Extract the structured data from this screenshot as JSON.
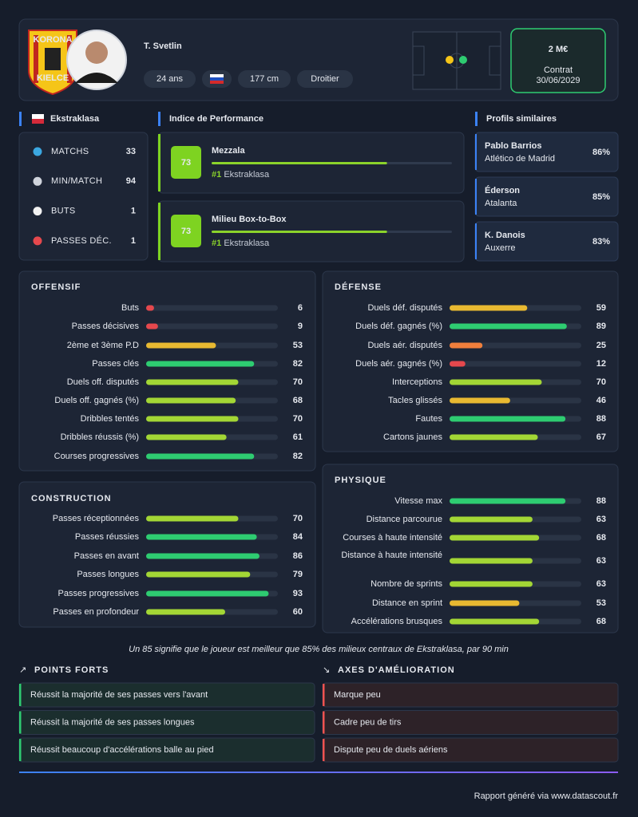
{
  "header": {
    "badge": [
      "KORONA",
      "KIELCE"
    ],
    "name": "T. Svetlin",
    "tags": [
      "24 ans",
      "177 cm",
      "Droitier"
    ],
    "market_value": "2 M€",
    "contract_label": "Contrat",
    "contract_end": "30/06/2029"
  },
  "league": {
    "name": "Ekstraklasa",
    "stats": [
      {
        "label": "MATCHS",
        "value": 33
      },
      {
        "label": "MIN/MATCH",
        "value": 94
      },
      {
        "label": "BUTS",
        "value": 1
      },
      {
        "label": "PASSES DÉC.",
        "value": 1
      }
    ]
  },
  "performance": {
    "title": "Indice de Performance",
    "xlim": [
      0,
      100
    ],
    "roles": [
      {
        "score": 73,
        "role": "Mezzala",
        "rank": "#1",
        "league": "Ekstraklasa"
      },
      {
        "score": 73,
        "role": "Milieu Box-to-Box",
        "rank": "#1",
        "league": "Ekstraklasa"
      }
    ]
  },
  "similar": {
    "title": "Profils similaires",
    "players": [
      {
        "name": "Pablo Barrios",
        "club": "Atlético de Madrid",
        "similarity": "86%"
      },
      {
        "name": "Éderson",
        "club": "Atalanta",
        "similarity": "85%"
      },
      {
        "name": "K. Danois",
        "club": "Auxerre",
        "similarity": "83%"
      }
    ]
  },
  "sections": [
    {
      "title": "OFFENSIF",
      "xlim": [
        0,
        100
      ],
      "categories": [
        "Buts",
        "Passes décisives",
        "2ème et 3ème P.D",
        "Passes clés",
        "Duels off. disputés",
        "Duels off. gagnés (%)",
        "Dribbles tentés",
        "Dribbles réussis (%)",
        "Courses progressives"
      ],
      "values": [
        6,
        9,
        53,
        82,
        70,
        68,
        70,
        61,
        82
      ]
    },
    {
      "title": "DÉFENSE",
      "xlim": [
        0,
        100
      ],
      "categories": [
        "Duels déf. disputés",
        "Duels déf. gagnés (%)",
        "Duels aér. disputés",
        "Duels aér. gagnés (%)",
        "Interceptions",
        "Tacles glissés",
        "Fautes",
        "Cartons jaunes"
      ],
      "values": [
        59,
        89,
        25,
        12,
        70,
        46,
        88,
        67
      ]
    },
    {
      "title": "CONSTRUCTION",
      "xlim": [
        0,
        100
      ],
      "categories": [
        "Passes réceptionnées",
        "Passes réussies",
        "Passes en avant",
        "Passes longues",
        "Passes progressives",
        "Passes en profondeur"
      ],
      "values": [
        70,
        84,
        86,
        79,
        93,
        60
      ]
    },
    {
      "title": "PHYSIQUE",
      "xlim": [
        0,
        100
      ],
      "categories": [
        "Vitesse max",
        "Distance parcourue",
        "Courses à haute intensité",
        "Distance à haute intensité",
        "Nombre de sprints",
        "Distance en sprint",
        "Accélérations brusques"
      ],
      "values": [
        88,
        63,
        68,
        63,
        63,
        53,
        68
      ]
    }
  ],
  "footnote": "Un 85 signifie que le joueur est meilleur que 85% des milieux centraux de Ekstraklasa, par 90 min",
  "strengths": {
    "title": "POINTS FORTS",
    "items": [
      "Réussit la majorité de ses passes vers l'avant",
      "Réussit la majorité de ses passes longues",
      "Réussit beaucoup d'accélérations balle au pied"
    ]
  },
  "weaknesses": {
    "title": "AXES D'AMÉLIORATION",
    "items": [
      "Marque peu",
      "Cadre peu de tirs",
      "Dispute peu de duels aériens"
    ]
  },
  "footer": "Rapport généré via www.datascout.fr"
}
